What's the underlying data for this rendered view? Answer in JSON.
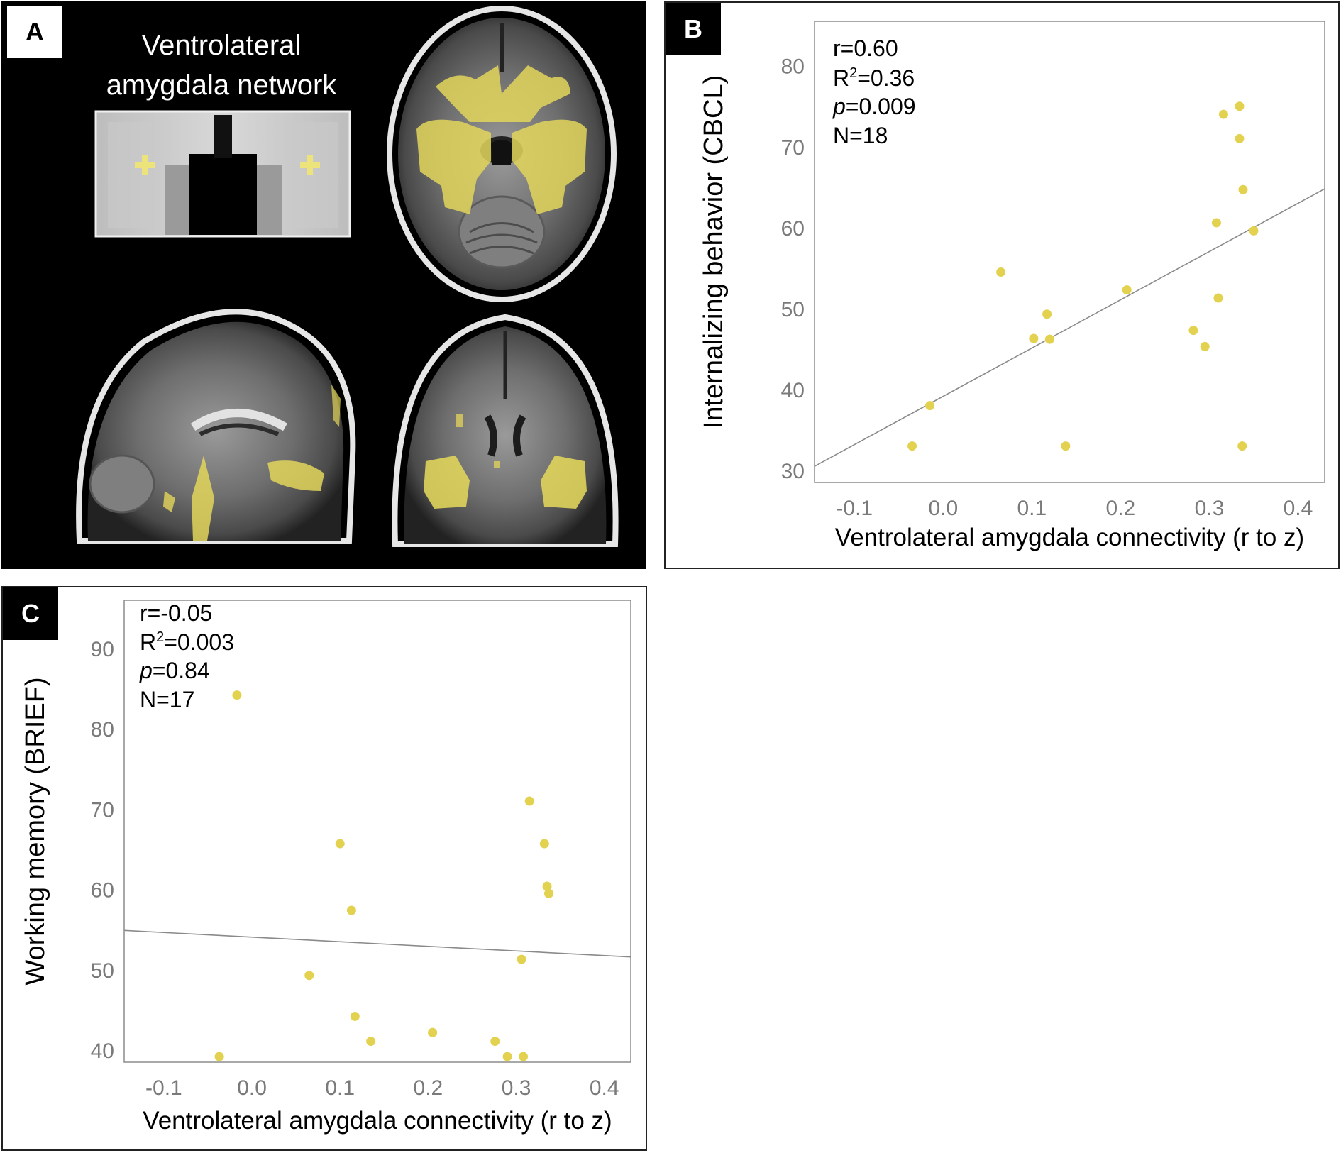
{
  "panel_a": {
    "label": "A",
    "title_line1": "Ventrolateral",
    "title_line2": "amygdala network",
    "colors": {
      "highlight": "#e6dc5a",
      "background": "#000000"
    },
    "images": [
      "coronal-seed-inset",
      "axial-brain-slice",
      "sagittal-brain-slice",
      "coronal-brain-slice"
    ]
  },
  "panel_b": {
    "label": "B",
    "stats": {
      "r": "r=0.60",
      "r2_prefix": "R",
      "r2_sup": "2",
      "r2_value": "=0.36",
      "p_italic": "p",
      "p_value": "=0.009",
      "n": "N=18"
    }
  },
  "panel_c": {
    "label": "C",
    "stats": {
      "r": "r=-0.05",
      "r2_prefix": "R",
      "r2_sup": "2",
      "r2_value": "=0.003",
      "p_italic": "p",
      "p_value": "=0.84",
      "n": "N=17"
    }
  },
  "chart_data": [
    {
      "type": "scatter",
      "id": "B",
      "title": "",
      "xlabel": "Ventrolateral amygdala connectivity (r to z)",
      "ylabel": "Internalizing behavior (CBCL)",
      "xlim": [
        -0.145,
        0.43
      ],
      "ylim": [
        28.5,
        85.5
      ],
      "xticks": [
        -0.1,
        0.0,
        0.1,
        0.2,
        0.3,
        0.4
      ],
      "xtick_labels": [
        "-0.1",
        "0.0",
        "0.1",
        "0.2",
        "0.3",
        "0.4"
      ],
      "yticks": [
        30,
        40,
        50,
        60,
        70,
        80
      ],
      "ytick_labels": [
        "30",
        "40",
        "50",
        "60",
        "70",
        "80"
      ],
      "grid": false,
      "point_color": "#e3d24f",
      "points": [
        [
          -0.035,
          33
        ],
        [
          -0.015,
          38
        ],
        [
          0.065,
          54.5
        ],
        [
          0.102,
          46.3
        ],
        [
          0.117,
          49.3
        ],
        [
          0.12,
          46.2
        ],
        [
          0.138,
          33
        ],
        [
          0.207,
          52.3
        ],
        [
          0.282,
          47.3
        ],
        [
          0.295,
          45.3
        ],
        [
          0.308,
          60.6
        ],
        [
          0.31,
          51.3
        ],
        [
          0.316,
          74
        ],
        [
          0.334,
          75
        ],
        [
          0.334,
          71
        ],
        [
          0.337,
          33
        ],
        [
          0.338,
          64.7
        ],
        [
          0.35,
          59.6
        ]
      ],
      "regression_line": {
        "x": [
          -0.145,
          0.43
        ],
        "y": [
          30.5,
          64.8
        ]
      }
    },
    {
      "type": "scatter",
      "id": "C",
      "title": "",
      "xlabel": "Ventrolateral amygdala connectivity (r to z)",
      "ylabel": "Working memory (BRIEF)",
      "xlim": [
        -0.145,
        0.43
      ],
      "ylim": [
        38.5,
        96
      ],
      "xticks": [
        -0.1,
        0.0,
        0.1,
        0.2,
        0.3,
        0.4
      ],
      "xtick_labels": [
        "-0.1",
        "0.0",
        "0.1",
        "0.2",
        "0.3",
        "0.4"
      ],
      "yticks": [
        40,
        50,
        60,
        70,
        80,
        90
      ],
      "ytick_labels": [
        "40",
        "50",
        "60",
        "70",
        "80",
        "90"
      ],
      "grid": false,
      "point_color": "#e3d24f",
      "points": [
        [
          -0.037,
          39.2
        ],
        [
          -0.017,
          84.2
        ],
        [
          0.065,
          49.3
        ],
        [
          0.1,
          65.7
        ],
        [
          0.113,
          57.4
        ],
        [
          0.117,
          44.2
        ],
        [
          0.135,
          41.1
        ],
        [
          0.205,
          42.2
        ],
        [
          0.276,
          41.1
        ],
        [
          0.29,
          39.2
        ],
        [
          0.306,
          51.3
        ],
        [
          0.308,
          39.2
        ],
        [
          0.315,
          71
        ],
        [
          0.332,
          65.7
        ],
        [
          0.335,
          60.4
        ],
        [
          0.337,
          59.5
        ],
        [
          0.337,
          59.5
        ]
      ],
      "regression_line": {
        "x": [
          -0.145,
          0.43
        ],
        "y": [
          54.9,
          51.6
        ]
      }
    }
  ]
}
